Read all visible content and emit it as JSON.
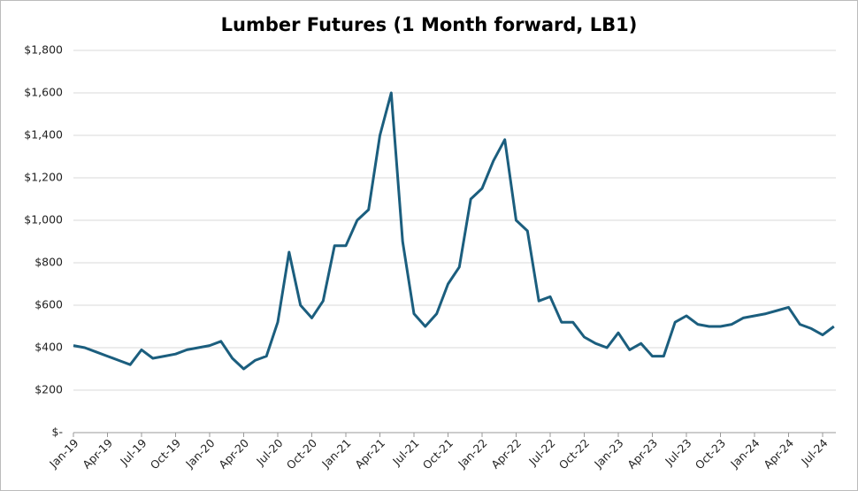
{
  "chart_data": {
    "type": "line",
    "title": "Lumber Futures (1 Month forward, LB1)",
    "categories": [
      "Jan-19",
      null,
      null,
      "Apr-19",
      null,
      null,
      "Jul-19",
      null,
      null,
      "Oct-19",
      null,
      null,
      "Jan-20",
      null,
      null,
      "Apr-20",
      null,
      null,
      "Jul-20",
      null,
      null,
      "Oct-20",
      null,
      null,
      "Jan-21",
      null,
      null,
      "Apr-21",
      null,
      null,
      "Jul-21",
      null,
      null,
      "Oct-21",
      null,
      null,
      "Jan-22",
      null,
      null,
      "Apr-22",
      null,
      null,
      "Jul-22",
      null,
      null,
      "Oct-22",
      null,
      null,
      "Jan-23",
      null,
      null,
      "Apr-23",
      null,
      null,
      "Jul-23",
      null,
      null,
      "Oct-23",
      null,
      null,
      "Jan-24",
      null,
      null,
      "Apr-24",
      null,
      null,
      "Jul-24",
      null
    ],
    "values": [
      410,
      400,
      380,
      360,
      340,
      320,
      390,
      350,
      360,
      370,
      390,
      400,
      410,
      430,
      350,
      300,
      340,
      360,
      520,
      850,
      600,
      540,
      620,
      880,
      880,
      1000,
      1050,
      1400,
      1600,
      900,
      560,
      500,
      560,
      700,
      780,
      1100,
      1150,
      1280,
      1380,
      1000,
      950,
      620,
      640,
      520,
      520,
      450,
      420,
      400,
      470,
      390,
      420,
      360,
      360,
      520,
      550,
      510,
      500,
      500,
      510,
      540,
      550,
      560,
      575,
      590,
      510,
      490,
      460,
      500
    ],
    "color": "#1b5e7e",
    "ylim": [
      0,
      1800
    ],
    "yticks": [
      {
        "value": 0,
        "label": "$-"
      },
      {
        "value": 200,
        "label": "$200"
      },
      {
        "value": 400,
        "label": "$400"
      },
      {
        "value": 600,
        "label": "$600"
      },
      {
        "value": 800,
        "label": "$800"
      },
      {
        "value": 1000,
        "label": "$1,000"
      },
      {
        "value": 1200,
        "label": "$1,200"
      },
      {
        "value": 1400,
        "label": "$1,400"
      },
      {
        "value": 1600,
        "label": "$1,600"
      },
      {
        "value": 1800,
        "label": "$1,800"
      }
    ],
    "grid": true
  }
}
